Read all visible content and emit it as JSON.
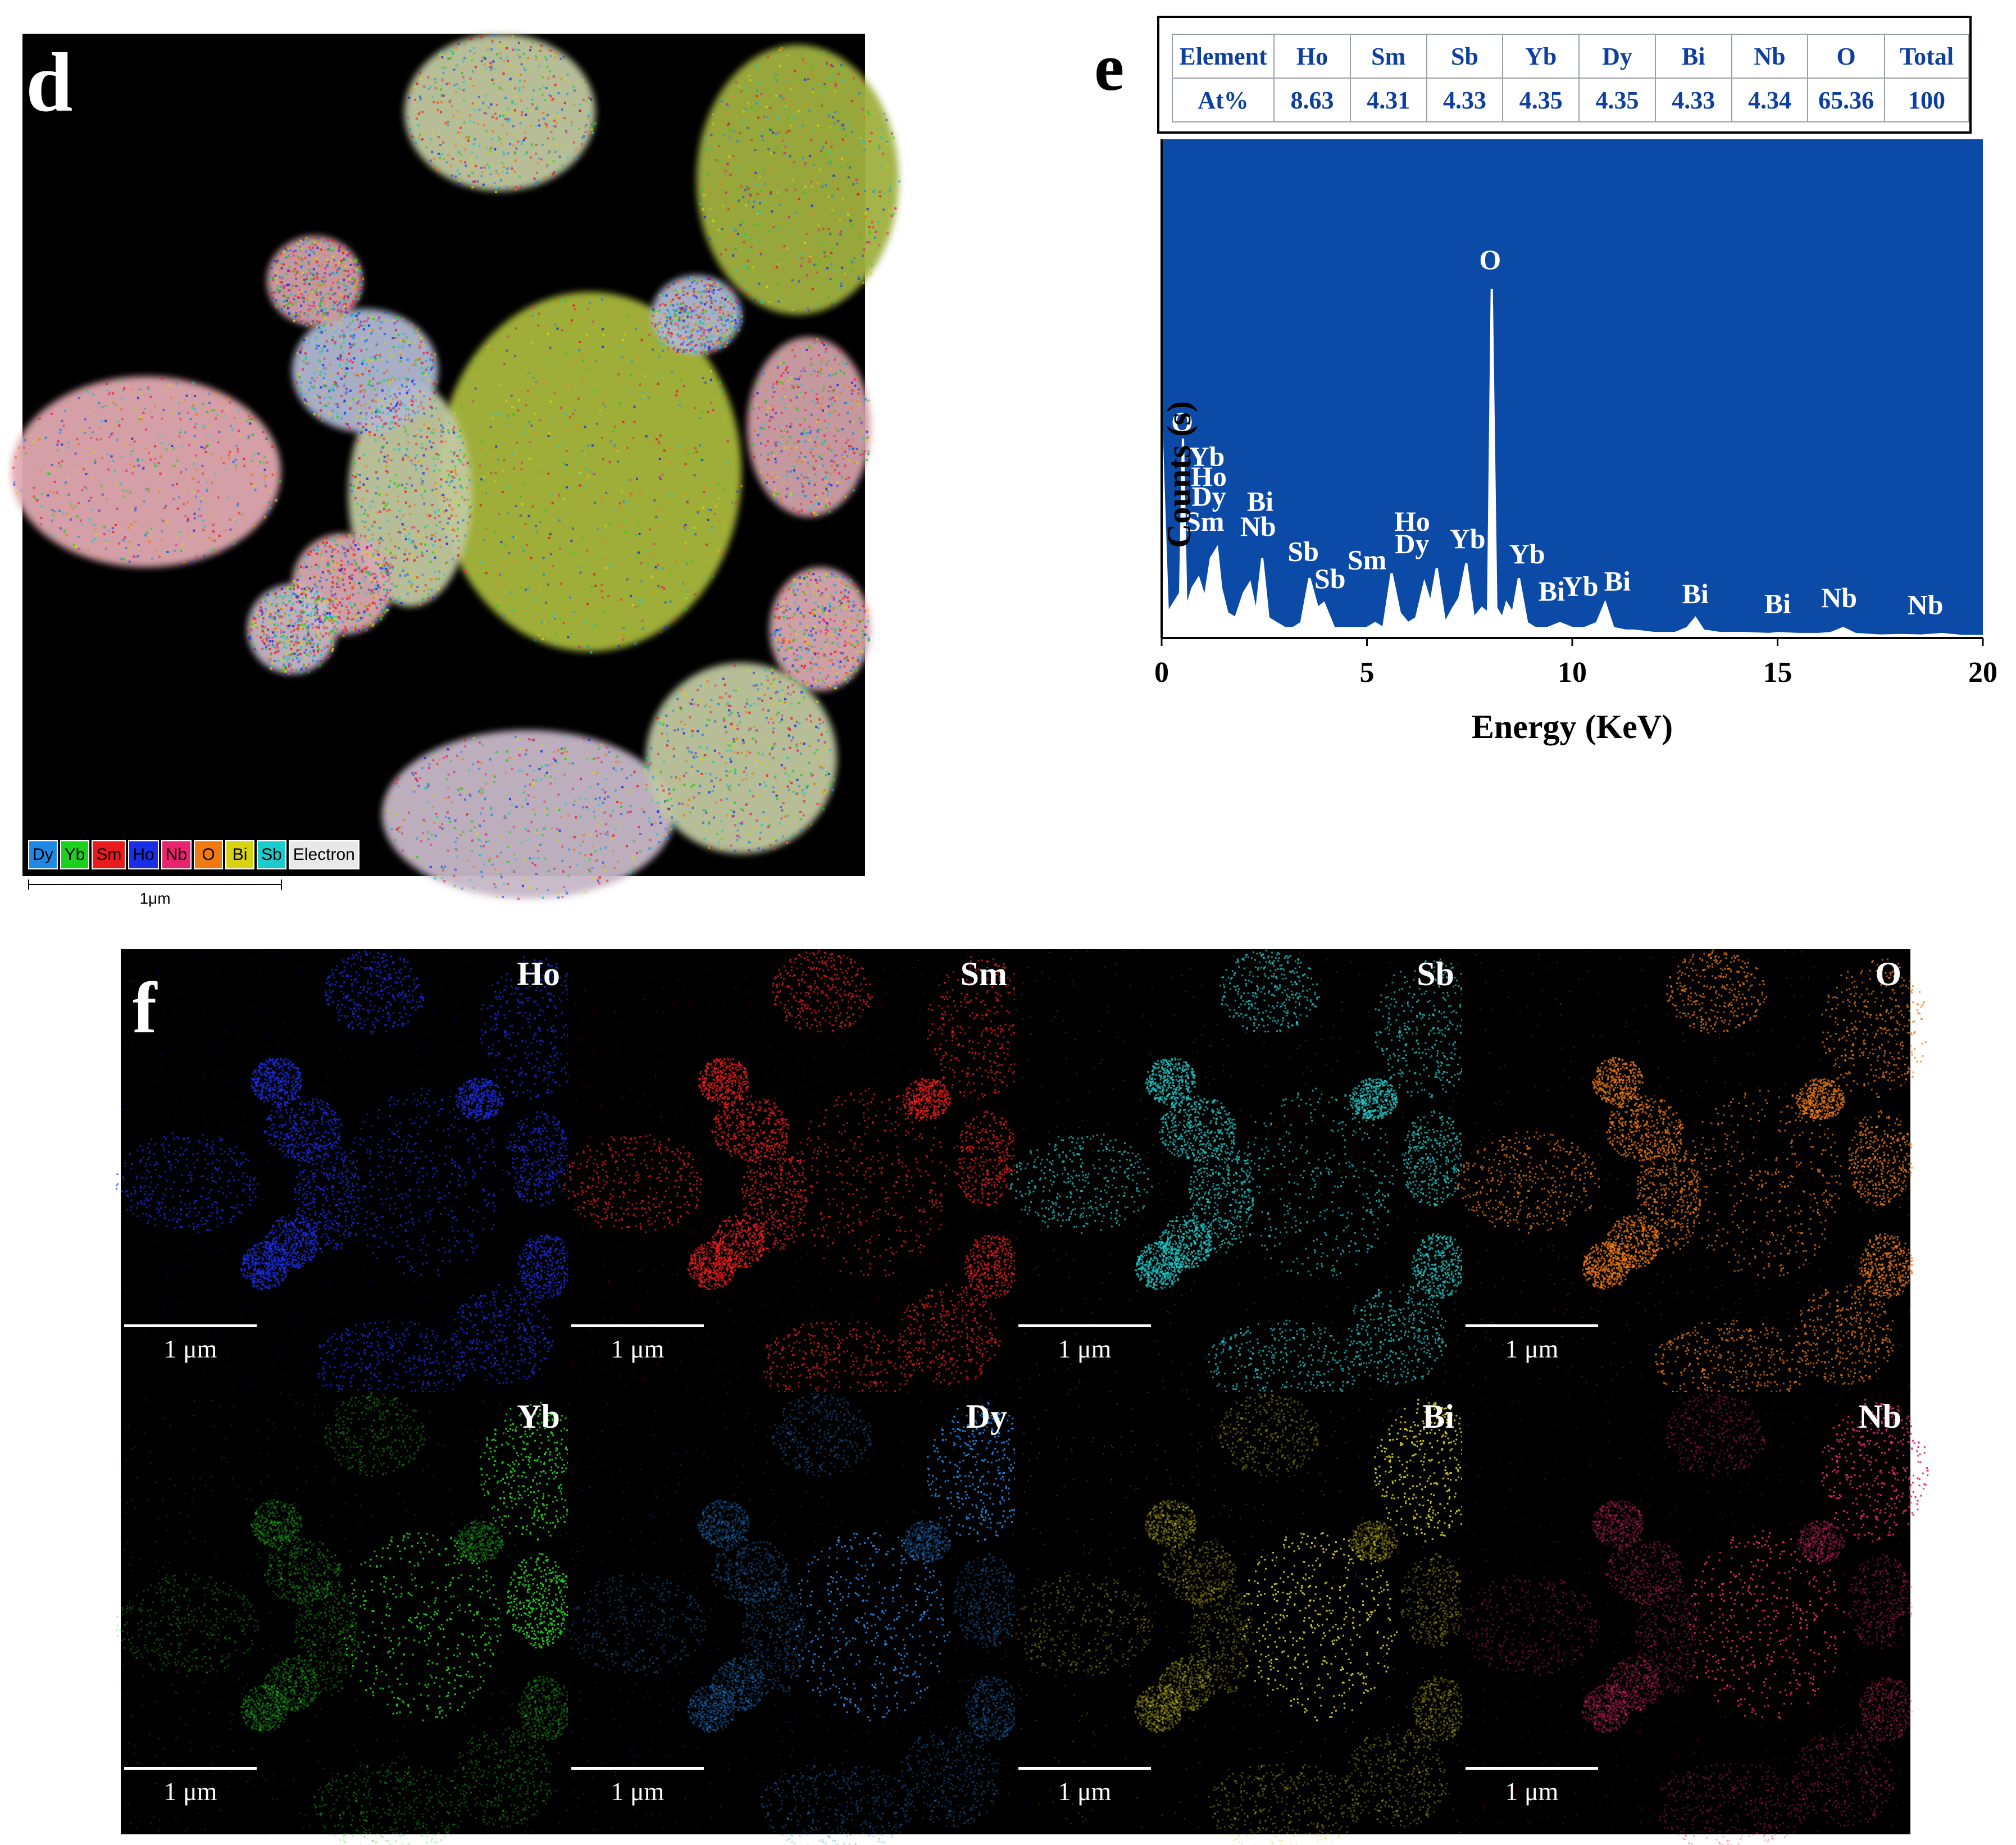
{
  "panels": {
    "d": {
      "letter": "d",
      "legend": [
        "Dy",
        "Yb",
        "Sm",
        "Ho",
        "Nb",
        "O",
        "Bi",
        "Sb",
        "Electron"
      ],
      "scale_label": "1μm"
    },
    "e": {
      "letter": "e",
      "table": {
        "header": [
          "Element",
          "Ho",
          "Sm",
          "Sb",
          "Yb",
          "Dy",
          "Bi",
          "Nb",
          "O",
          "Total"
        ],
        "row": [
          "At%",
          "8.63",
          "4.31",
          "4.33",
          "4.35",
          "4.35",
          "4.33",
          "4.34",
          "65.36",
          "100"
        ]
      }
    },
    "f": {
      "letter": "f",
      "maps": [
        {
          "element": "Ho",
          "scale": "1 μm"
        },
        {
          "element": "Sm",
          "scale": "1 μm"
        },
        {
          "element": "Sb",
          "scale": "1 μm"
        },
        {
          "element": "O",
          "scale": "1 μm"
        },
        {
          "element": "Yb",
          "scale": "1 μm"
        },
        {
          "element": "Dy",
          "scale": "1 μm"
        },
        {
          "element": "Bi",
          "scale": "1 μm"
        },
        {
          "element": "Nb",
          "scale": "1 μm"
        }
      ]
    }
  },
  "colors": {
    "Dy": "#1e88e5",
    "Yb": "#1ed01e",
    "Sm": "#e81c1c",
    "Ho": "#1a2ee6",
    "Nb": "#e8246e",
    "O": "#f07a10",
    "Bi": "#d8d212",
    "Sb": "#1ccbcb",
    "Electron": "#e8e8e8",
    "spectrum_bg": "#0b4aa6",
    "table_text": "#0d3fa0"
  },
  "chart_data": {
    "type": "line",
    "title": "",
    "xlabel": "Energy (KeV)",
    "ylabel": "Counts (s)",
    "xlim": [
      0,
      20
    ],
    "ylim": [
      0,
      1
    ],
    "xticks": [
      0,
      5,
      10,
      15,
      20
    ],
    "yticks_shown": false,
    "series": [
      {
        "x": [
          0.0,
          0.15,
          0.3,
          0.45,
          0.52,
          0.6,
          0.75,
          0.9,
          1.05,
          1.2,
          1.35,
          1.45,
          1.6,
          1.8,
          2.0,
          2.15,
          2.3,
          2.45,
          2.6,
          2.8,
          3.0,
          3.2,
          3.4,
          3.6,
          3.8,
          3.95,
          4.2,
          4.5,
          4.8,
          5.0,
          5.2,
          5.4,
          5.6,
          5.8,
          6.0,
          6.2,
          6.4,
          6.55,
          6.7,
          6.9,
          7.1,
          7.25,
          7.42,
          7.6,
          7.8,
          7.95,
          8.04,
          8.15,
          8.3,
          8.4,
          8.55,
          8.7,
          8.9,
          9.1,
          9.4,
          9.7,
          10.0,
          10.3,
          10.6,
          10.8,
          11.0,
          11.3,
          11.5,
          12.0,
          12.5,
          12.8,
          13.0,
          13.2,
          13.6,
          14.2,
          14.8,
          15.0,
          15.5,
          16.0,
          16.3,
          16.6,
          16.9,
          17.5,
          18.0,
          18.5,
          19.0,
          19.5,
          20.0
        ],
        "y": [
          0.42,
          0.05,
          0.07,
          0.09,
          0.4,
          0.06,
          0.1,
          0.12,
          0.08,
          0.16,
          0.18,
          0.1,
          0.05,
          0.04,
          0.09,
          0.11,
          0.05,
          0.16,
          0.04,
          0.03,
          0.02,
          0.02,
          0.03,
          0.12,
          0.06,
          0.07,
          0.02,
          0.02,
          0.02,
          0.02,
          0.03,
          0.02,
          0.13,
          0.05,
          0.03,
          0.04,
          0.11,
          0.07,
          0.14,
          0.03,
          0.06,
          0.08,
          0.15,
          0.04,
          0.06,
          0.05,
          0.7,
          0.06,
          0.04,
          0.07,
          0.05,
          0.12,
          0.03,
          0.02,
          0.02,
          0.03,
          0.02,
          0.02,
          0.03,
          0.07,
          0.02,
          0.015,
          0.015,
          0.01,
          0.01,
          0.02,
          0.04,
          0.015,
          0.01,
          0.01,
          0.008,
          0.01,
          0.008,
          0.008,
          0.01,
          0.02,
          0.008,
          0.005,
          0.006,
          0.005,
          0.008,
          0.004,
          0.004
        ]
      }
    ],
    "annotations": [
      {
        "text": "O",
        "x": 0.5,
        "y": 0.415
      },
      {
        "text": "Yb",
        "x": 1.1,
        "y": 0.345
      },
      {
        "text": "Ho",
        "x": 1.15,
        "y": 0.305
      },
      {
        "text": "Dy",
        "x": 1.15,
        "y": 0.265
      },
      {
        "text": "Sm",
        "x": 1.05,
        "y": 0.215
      },
      {
        "text": "Bi",
        "x": 2.4,
        "y": 0.255
      },
      {
        "text": "Nb",
        "x": 2.35,
        "y": 0.205
      },
      {
        "text": "Sb",
        "x": 3.45,
        "y": 0.155
      },
      {
        "text": "Sb",
        "x": 4.1,
        "y": 0.1
      },
      {
        "text": "Sm",
        "x": 5.0,
        "y": 0.138
      },
      {
        "text": "Ho",
        "x": 6.1,
        "y": 0.215
      },
      {
        "text": "Dy",
        "x": 6.1,
        "y": 0.17
      },
      {
        "text": "Yb",
        "x": 7.45,
        "y": 0.18
      },
      {
        "text": "O",
        "x": 8.0,
        "y": 0.74
      },
      {
        "text": "Yb",
        "x": 8.9,
        "y": 0.15
      },
      {
        "text": "Bi",
        "x": 9.5,
        "y": 0.075
      },
      {
        "text": "Yb",
        "x": 10.2,
        "y": 0.085
      },
      {
        "text": "Bi",
        "x": 11.1,
        "y": 0.095
      },
      {
        "text": "Bi",
        "x": 13.0,
        "y": 0.07
      },
      {
        "text": "Bi",
        "x": 15.0,
        "y": 0.05
      },
      {
        "text": "Nb",
        "x": 16.5,
        "y": 0.062
      },
      {
        "text": "Nb",
        "x": 18.6,
        "y": 0.048
      }
    ]
  }
}
